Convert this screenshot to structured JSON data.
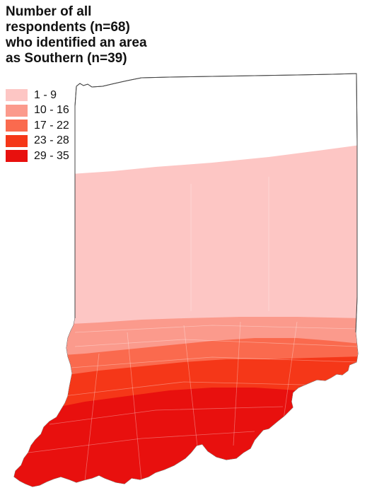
{
  "title": {
    "lines": [
      "Number of all",
      "respondents (n=68)",
      "who identified an area",
      "as Southern (n=39)"
    ]
  },
  "legend": {
    "items": [
      {
        "label": "1 - 9",
        "color": "#fdc6c4"
      },
      {
        "label": "10 - 16",
        "color": "#fb9a8c"
      },
      {
        "label": "17 - 22",
        "color": "#fa6a4e"
      },
      {
        "label": "23 - 28",
        "color": "#f53718"
      },
      {
        "label": "29 - 35",
        "color": "#e8100e"
      }
    ]
  },
  "map": {
    "region": "Indiana",
    "background_color": "#ffffff",
    "outline_color": "#555555"
  }
}
